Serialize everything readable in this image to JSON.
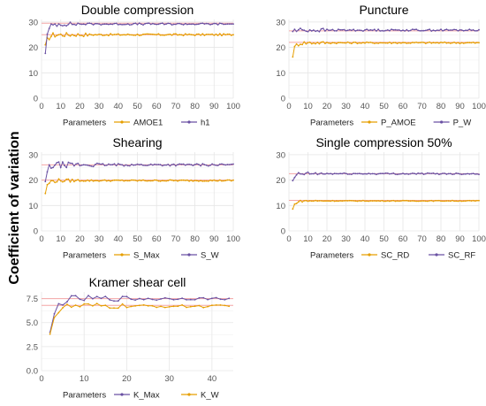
{
  "figure": {
    "ylabel": "Coefficient of variation",
    "legend_title": "Parameters"
  },
  "colors": {
    "orange": "#E69F00",
    "purple": "#6A51A3",
    "ref_line": "#F4A6A6",
    "grid": "#E6E6E6",
    "axis_text": "#555555"
  },
  "chart_data": [
    {
      "type": "line",
      "title": "Double compression",
      "x": {
        "start": 2,
        "end": 100,
        "ticks": [
          0,
          10,
          20,
          30,
          40,
          50,
          60,
          70,
          80,
          90,
          100
        ],
        "range": [
          0,
          100
        ]
      },
      "y": {
        "range": [
          0,
          31
        ],
        "ticks": [
          0,
          10,
          20,
          30
        ]
      },
      "ref_lines": [
        25,
        29.5
      ],
      "grid": true,
      "legend_placement": "bottom",
      "series": [
        {
          "name": "AMOE1",
          "color": "orange",
          "start": 20,
          "plateau": 25.0,
          "amp": 1.0,
          "settle": 25
        },
        {
          "name": "h1",
          "color": "purple",
          "start": 18.5,
          "plateau": 29.2,
          "amp": 1.0,
          "settle": 20
        }
      ]
    },
    {
      "type": "line",
      "title": "Puncture",
      "x": {
        "start": 2,
        "end": 100,
        "ticks": [
          0,
          10,
          20,
          30,
          40,
          50,
          60,
          70,
          80,
          90,
          100
        ],
        "range": [
          0,
          100
        ]
      },
      "y": {
        "range": [
          0,
          31
        ],
        "ticks": [
          0,
          10,
          20,
          30
        ]
      },
      "ref_lines": [
        22,
        26.5
      ],
      "grid": true,
      "legend_placement": "bottom",
      "series": [
        {
          "name": "P_AMOE",
          "color": "orange",
          "start": 17,
          "plateau": 21.8,
          "amp": 0.8,
          "settle": 20
        },
        {
          "name": "P_W",
          "color": "purple",
          "start": 26.5,
          "plateau": 26.8,
          "amp": 1.0,
          "settle": 20
        }
      ]
    },
    {
      "type": "line",
      "title": "Shearing",
      "x": {
        "start": 2,
        "end": 100,
        "ticks": [
          0,
          10,
          20,
          30,
          40,
          50,
          60,
          70,
          80,
          90,
          100
        ],
        "range": [
          0,
          100
        ]
      },
      "y": {
        "range": [
          0,
          31
        ],
        "ticks": [
          0,
          10,
          20,
          30
        ]
      },
      "ref_lines": [
        20,
        26
      ],
      "grid": true,
      "legend_placement": "bottom",
      "series": [
        {
          "name": "S_Max",
          "color": "orange",
          "start": 15,
          "plateau": 19.8,
          "amp": 0.8,
          "settle": 20
        },
        {
          "name": "S_W",
          "color": "purple",
          "start": 19,
          "plateau": 26.0,
          "amp": 1.2,
          "settle": 30
        }
      ]
    },
    {
      "type": "line",
      "title": "Single compression 50%",
      "x": {
        "start": 2,
        "end": 100,
        "ticks": [
          0,
          10,
          20,
          30,
          40,
          50,
          60,
          70,
          80,
          90,
          100
        ],
        "range": [
          0,
          100
        ]
      },
      "y": {
        "range": [
          0,
          31
        ],
        "ticks": [
          0,
          10,
          20,
          30
        ]
      },
      "ref_lines": [
        12,
        22.5
      ],
      "grid": true,
      "legend_placement": "bottom",
      "series": [
        {
          "name": "SC_RD",
          "color": "orange",
          "start": 8.5,
          "plateau": 11.8,
          "amp": 0.4,
          "settle": 15
        },
        {
          "name": "SC_RF",
          "color": "purple",
          "start": 19,
          "plateau": 22.5,
          "amp": 0.8,
          "settle": 20
        }
      ]
    },
    {
      "type": "line",
      "title": "Kramer shear cell",
      "x": {
        "start": 2,
        "end": 44,
        "ticks": [
          0,
          10,
          20,
          30,
          40
        ],
        "range": [
          0,
          45
        ]
      },
      "y": {
        "range": [
          0,
          8.2
        ],
        "ticks": [
          "0.0",
          "2.5",
          "5.0",
          "7.5"
        ]
      },
      "ref_lines": [
        6.8,
        7.5
      ],
      "grid": true,
      "legend_placement": "bottom",
      "series": [
        {
          "name": "K_Max",
          "color": "purple",
          "start": 3.7,
          "plateau": 7.5,
          "amp": 0.35,
          "settle": 28
        },
        {
          "name": "K_W",
          "color": "orange",
          "start": 4.2,
          "plateau": 6.7,
          "amp": 0.4,
          "settle": 20
        }
      ]
    }
  ]
}
